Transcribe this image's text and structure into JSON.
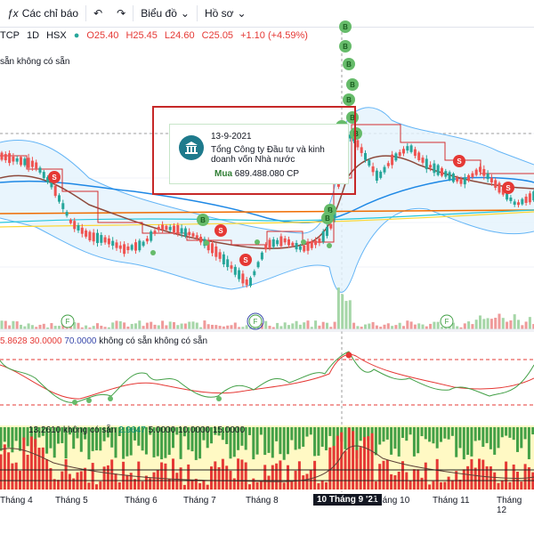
{
  "toolbar": {
    "indicators_label": "Các chỉ báo",
    "chart_type_label": "Biểu đồ",
    "profile_label": "Hồ sơ"
  },
  "symbol": {
    "name": "TCP",
    "interval": "1D",
    "exchange": "HSX"
  },
  "ohlc": {
    "open": "O25.40",
    "high": "H25.45",
    "low": "L24.60",
    "close": "C25.05",
    "change": "+1.10 (+4.59%)"
  },
  "sub_label": "sẵn  không có sẵn",
  "tooltip": {
    "date": "13-9-2021",
    "org_line1": "Tổng Công ty Đầu tư và kinh",
    "org_line2": "doanh vốn Nhà nước",
    "action": "Mua",
    "amount": "689.488.080 CP"
  },
  "indicator1_label": {
    "a": "5.8628",
    "b": "30.0000",
    "c": "70.0000",
    "d": "không có sẵn",
    "e": "không có sẵn"
  },
  "indicator2_label": {
    "a": "13.2610",
    "b": "không có sẵn",
    "c": "2.9647",
    "d": "5.0000",
    "e": "10.0000",
    "f": "15.0000"
  },
  "markers": {
    "buy": "B",
    "sell": "S",
    "event": "F"
  },
  "colors": {
    "up": "#26a69a",
    "down": "#ef5350",
    "bb": "#90caf9",
    "red_frame": "#c62828",
    "buy_marker": "#66bb6a",
    "sell_marker": "#e53935"
  },
  "chart_data": {
    "type": "line",
    "x_ticks": [
      "Tháng 4",
      "Tháng 5",
      "Tháng 6",
      "Tháng 7",
      "Tháng 8",
      "10 Tháng 9 '21",
      "Tháng 10",
      "Tháng 11",
      "Tháng 12"
    ],
    "active_tick": "10 Tháng 9 '21",
    "rsi_levels": [
      30,
      70
    ],
    "stoch_levels": [
      5,
      10,
      15
    ]
  }
}
